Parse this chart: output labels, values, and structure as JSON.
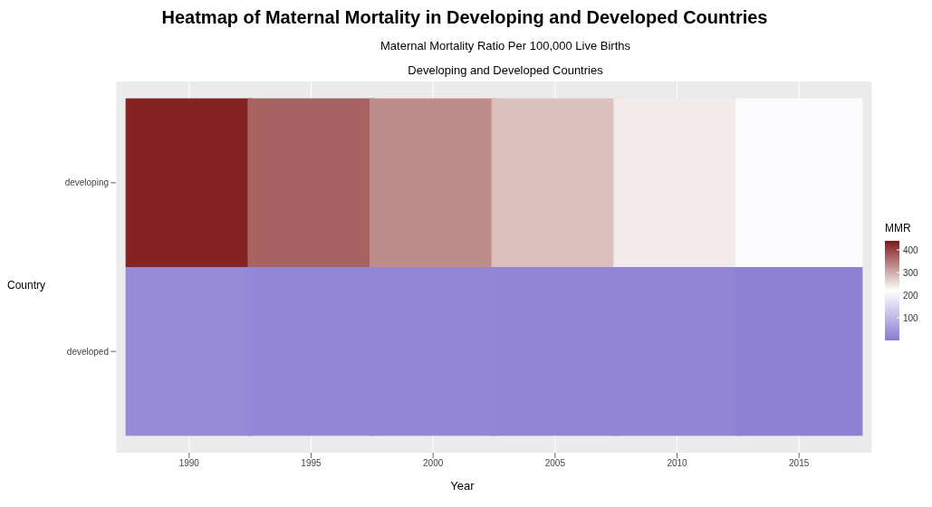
{
  "chart_data": {
    "type": "heatmap",
    "title": "Heatmap of Maternal Mortality in Developing and Developed Countries",
    "subtitle": "Maternal Mortality Ratio Per 100,000 Live Births",
    "annotations": [
      "Developing and Developed Countries"
    ],
    "xlabel": "Year",
    "ylabel": "Country",
    "clabel": "MMR",
    "categories": [
      "1990",
      "1995",
      "2000",
      "2005",
      "2010",
      "2015"
    ],
    "y_categories": [
      "developing",
      "developed"
    ],
    "cells": [
      [
        430,
        370,
        330,
        280,
        240,
        215
      ],
      [
        26,
        22,
        20,
        18,
        16,
        12
      ]
    ],
    "clim": [
      0,
      440
    ],
    "cticks": [
      100,
      200,
      300,
      400
    ],
    "grid": true
  }
}
